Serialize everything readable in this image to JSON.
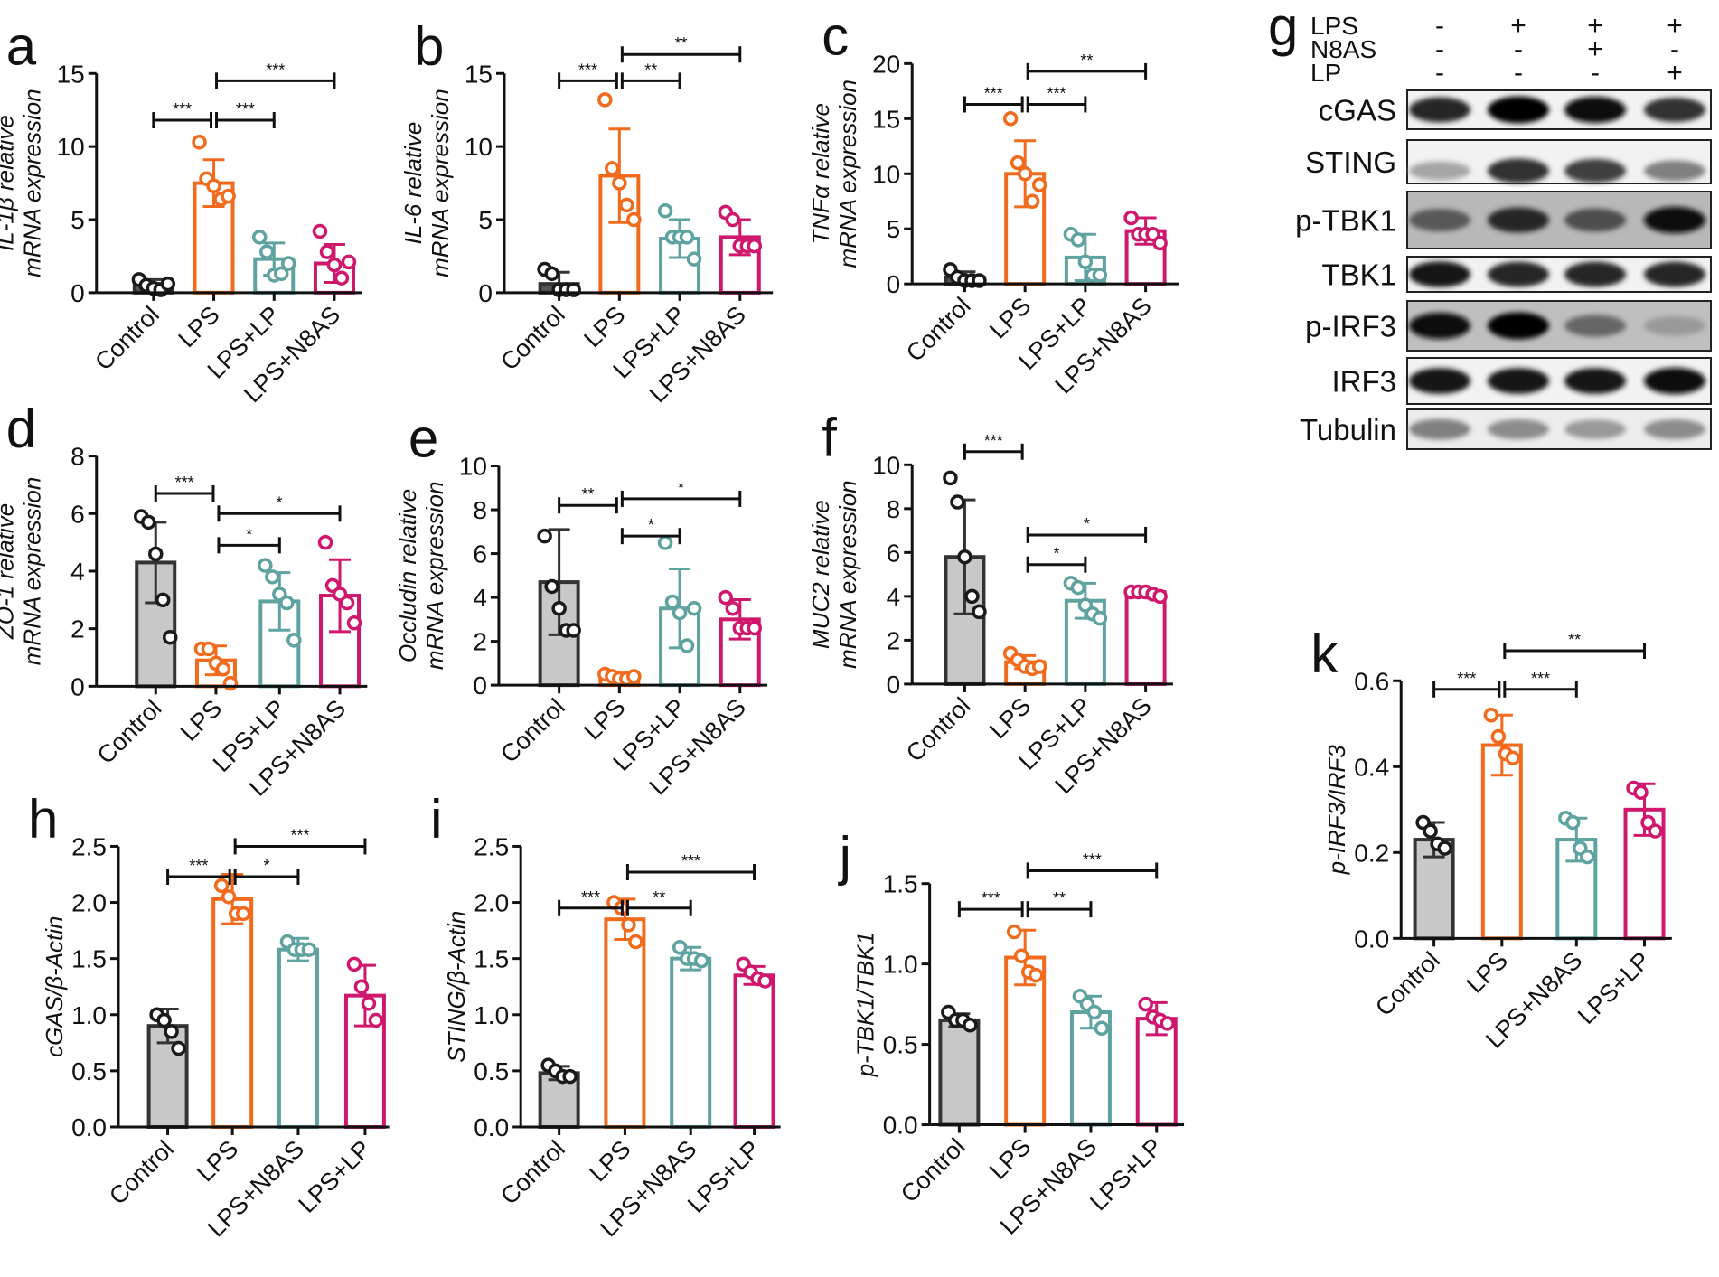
{
  "colors": {
    "control": "#1a1a1a",
    "control_fill": "#c8c8c8",
    "lps": "#f26b1d",
    "teal": "#5fa3a0",
    "magenta": "#d0176e"
  },
  "chart_data": [
    {
      "id": "a",
      "type": "bar",
      "panel_label": "a",
      "ylabel": [
        "IL-1β relative",
        "mRNA expression"
      ],
      "ylim": [
        0,
        15
      ],
      "yticks": [
        "0",
        "5",
        "10",
        "15"
      ],
      "ytick_values": [
        0,
        5,
        10,
        15
      ],
      "categories": [
        "Control",
        "LPS",
        "LPS+LP",
        "LPS+N8AS"
      ],
      "control_filled": false,
      "means": [
        0.6,
        7.5,
        2.3,
        2.0
      ],
      "sd": [
        0.3,
        1.6,
        1.1,
        1.3
      ],
      "points": [
        [
          0.9,
          0.5,
          0.3,
          0.2,
          0.6
        ],
        [
          10.3,
          7.8,
          7.3,
          6.4,
          6.6
        ],
        [
          3.8,
          2.8,
          1.2,
          1.3,
          2.0
        ],
        [
          4.2,
          2.8,
          1.9,
          1.0,
          2.1
        ]
      ],
      "significance": [
        {
          "from": 0,
          "to": 1,
          "label": "***",
          "y": 11.8
        },
        {
          "from": 1,
          "to": 2,
          "label": "***",
          "y": 11.8
        },
        {
          "from": 1,
          "to": 3,
          "label": "***",
          "y": 14.5
        }
      ]
    },
    {
      "id": "b",
      "type": "bar",
      "panel_label": "b",
      "ylabel": [
        "IL-6 relative",
        "mRNA expression"
      ],
      "ylim": [
        0,
        15
      ],
      "yticks": [
        "0",
        "5",
        "10",
        "15"
      ],
      "ytick_values": [
        0,
        5,
        10,
        15
      ],
      "categories": [
        "Control",
        "LPS",
        "LPS+LP",
        "LPS+N8AS"
      ],
      "control_filled": false,
      "means": [
        0.6,
        8.0,
        3.7,
        3.8
      ],
      "sd": [
        0.8,
        3.2,
        1.3,
        1.2
      ],
      "points": [
        [
          1.6,
          1.3,
          0.2,
          0.2,
          0.2
        ],
        [
          13.2,
          8.5,
          7.5,
          6.0,
          5.0
        ],
        [
          5.6,
          3.8,
          3.8,
          3.8,
          2.3
        ],
        [
          5.5,
          5.0,
          3.2,
          3.2,
          3.2
        ]
      ],
      "significance": [
        {
          "from": 0,
          "to": 1,
          "label": "***",
          "y": 14.5
        },
        {
          "from": 1,
          "to": 2,
          "label": "**",
          "y": 14.5
        },
        {
          "from": 1,
          "to": 3,
          "label": "**",
          "y": 16.3
        }
      ]
    },
    {
      "id": "c",
      "type": "bar",
      "panel_label": "c",
      "ylabel": [
        "TNFα relative",
        "mRNA expression"
      ],
      "ylim": [
        0,
        20
      ],
      "yticks": [
        "0",
        "5",
        "10",
        "15",
        "20"
      ],
      "ytick_values": [
        0,
        5,
        10,
        15,
        20
      ],
      "categories": [
        "Control",
        "LPS",
        "LPS+LP",
        "LPS+N8AS"
      ],
      "control_filled": false,
      "means": [
        0.6,
        10.0,
        2.4,
        4.8
      ],
      "sd": [
        0.5,
        3.0,
        2.1,
        1.2
      ],
      "points": [
        [
          1.3,
          0.6,
          0.3,
          0.3,
          0.3
        ],
        [
          15.0,
          11.0,
          10.0,
          7.5,
          9.0
        ],
        [
          4.5,
          4.0,
          2.0,
          0.8,
          0.8
        ],
        [
          6.0,
          4.5,
          4.5,
          4.5,
          3.7
        ]
      ],
      "significance": [
        {
          "from": 0,
          "to": 1,
          "label": "***",
          "y": 16.3
        },
        {
          "from": 1,
          "to": 2,
          "label": "***",
          "y": 16.3
        },
        {
          "from": 1,
          "to": 3,
          "label": "**",
          "y": 19.3
        }
      ]
    },
    {
      "id": "d",
      "type": "bar",
      "panel_label": "d",
      "ylabel": [
        "ZO-1 relative",
        "mRNA expression"
      ],
      "ylim": [
        0,
        8
      ],
      "yticks": [
        "0",
        "2",
        "4",
        "6",
        "8"
      ],
      "ytick_values": [
        0,
        2,
        4,
        6,
        8
      ],
      "categories": [
        "Control",
        "LPS",
        "LPS+LP",
        "LPS+N8AS"
      ],
      "control_filled": true,
      "means": [
        4.3,
        0.9,
        2.95,
        3.15
      ],
      "sd": [
        1.4,
        0.5,
        1.0,
        1.25
      ],
      "points": [
        [
          5.9,
          5.7,
          4.6,
          3.0,
          1.7
        ],
        [
          1.3,
          1.3,
          0.8,
          0.6,
          0.1
        ],
        [
          4.2,
          3.8,
          3.2,
          2.9,
          1.6
        ],
        [
          5.0,
          3.5,
          3.2,
          2.9,
          2.2
        ]
      ],
      "significance": [
        {
          "from": 0,
          "to": 1,
          "label": "***",
          "y": 6.7
        },
        {
          "from": 1,
          "to": 2,
          "label": "*",
          "y": 4.9
        },
        {
          "from": 1,
          "to": 3,
          "label": "*",
          "y": 6.0
        }
      ]
    },
    {
      "id": "e",
      "type": "bar",
      "panel_label": "e",
      "ylabel": [
        "Occludin relative",
        "mRNA expression"
      ],
      "ylim": [
        0,
        10
      ],
      "yticks": [
        "0",
        "2",
        "4",
        "6",
        "8",
        "10"
      ],
      "ytick_values": [
        0,
        2,
        4,
        6,
        8,
        10
      ],
      "categories": [
        "Control",
        "LPS",
        "LPS+LP",
        "LPS+N8AS"
      ],
      "control_filled": true,
      "means": [
        4.7,
        0.4,
        3.5,
        3.0
      ],
      "sd": [
        2.4,
        0.15,
        1.8,
        0.9
      ],
      "points": [
        [
          6.8,
          4.5,
          3.5,
          2.5,
          2.5
        ],
        [
          0.5,
          0.4,
          0.3,
          0.3,
          0.4
        ],
        [
          6.5,
          3.8,
          3.3,
          1.8,
          3.5
        ],
        [
          4.0,
          3.5,
          2.6,
          2.6,
          2.6
        ]
      ],
      "significance": [
        {
          "from": 0,
          "to": 1,
          "label": "**",
          "y": 8.2
        },
        {
          "from": 1,
          "to": 2,
          "label": "*",
          "y": 6.8
        },
        {
          "from": 1,
          "to": 3,
          "label": "*",
          "y": 8.5
        }
      ]
    },
    {
      "id": "f",
      "type": "bar",
      "panel_label": "f",
      "ylabel": [
        "MUC2 relative",
        "mRNA expression"
      ],
      "ylim": [
        0,
        10
      ],
      "yticks": [
        "0",
        "2",
        "4",
        "6",
        "8",
        "10"
      ],
      "ytick_values": [
        0,
        2,
        4,
        6,
        8,
        10
      ],
      "categories": [
        "Control",
        "LPS",
        "LPS+LP",
        "LPS+N8AS"
      ],
      "control_filled": true,
      "means": [
        5.8,
        1.0,
        3.8,
        4.2
      ],
      "sd": [
        2.6,
        0.3,
        0.8,
        0.15
      ],
      "points": [
        [
          9.4,
          8.3,
          5.8,
          4.0,
          3.3
        ],
        [
          1.4,
          1.1,
          0.8,
          0.7,
          0.8
        ],
        [
          4.6,
          4.4,
          3.6,
          3.2,
          3.0
        ],
        [
          4.2,
          4.2,
          4.2,
          4.1,
          4.0
        ]
      ],
      "significance": [
        {
          "from": 0,
          "to": 1,
          "label": "***",
          "y": 10.6
        },
        {
          "from": 1,
          "to": 2,
          "label": "*",
          "y": 5.45
        },
        {
          "from": 1,
          "to": 3,
          "label": "*",
          "y": 6.8
        }
      ]
    },
    {
      "id": "h",
      "type": "bar",
      "panel_label": "h",
      "ylabel": [
        "cGAS/β-Actin"
      ],
      "ylim": [
        0,
        2.5
      ],
      "yticks": [
        "0.0",
        "0.5",
        "1.0",
        "1.5",
        "2.0",
        "2.5"
      ],
      "ytick_values": [
        0,
        0.5,
        1,
        1.5,
        2,
        2.5
      ],
      "categories": [
        "Control",
        "LPS",
        "LPS+N8AS",
        "LPS+LP"
      ],
      "control_filled": true,
      "means": [
        0.9,
        2.03,
        1.58,
        1.17
      ],
      "sd": [
        0.15,
        0.22,
        0.1,
        0.27
      ],
      "points": [
        [
          1.0,
          0.95,
          0.85,
          0.7
        ],
        [
          2.15,
          2.05,
          1.9,
          1.9
        ],
        [
          1.65,
          1.58,
          1.58,
          1.58
        ],
        [
          1.45,
          1.25,
          1.1,
          0.95
        ]
      ],
      "significance": [
        {
          "from": 0,
          "to": 1,
          "label": "***",
          "y": 2.23
        },
        {
          "from": 1,
          "to": 2,
          "label": "*",
          "y": 2.23
        },
        {
          "from": 1,
          "to": 3,
          "label": "***",
          "y": 2.5
        }
      ]
    },
    {
      "id": "i",
      "type": "bar",
      "panel_label": "i",
      "ylabel": [
        "STING/β-Actin"
      ],
      "ylim": [
        0,
        2.5
      ],
      "yticks": [
        "0.0",
        "0.5",
        "1.0",
        "1.5",
        "2.0",
        "2.5"
      ],
      "ytick_values": [
        0,
        0.5,
        1,
        1.5,
        2,
        2.5
      ],
      "categories": [
        "Control",
        "LPS",
        "LPS+N8AS",
        "LPS+LP"
      ],
      "control_filled": true,
      "means": [
        0.48,
        1.85,
        1.5,
        1.35
      ],
      "sd": [
        0.06,
        0.18,
        0.1,
        0.08
      ],
      "points": [
        [
          0.55,
          0.5,
          0.45,
          0.45
        ],
        [
          2.0,
          1.95,
          1.8,
          1.65
        ],
        [
          1.6,
          1.5,
          1.5,
          1.48
        ],
        [
          1.45,
          1.38,
          1.32,
          1.3
        ]
      ],
      "significance": [
        {
          "from": 0,
          "to": 1,
          "label": "***",
          "y": 1.95
        },
        {
          "from": 1,
          "to": 2,
          "label": "**",
          "y": 1.95
        },
        {
          "from": 1,
          "to": 3,
          "label": "***",
          "y": 2.27
        }
      ]
    },
    {
      "id": "j",
      "type": "bar",
      "panel_label": "j",
      "ylabel": [
        "p-TBK1/TBK1"
      ],
      "ylim": [
        0,
        1.5
      ],
      "yticks": [
        "0.0",
        "0.5",
        "1.0",
        "1.5"
      ],
      "ytick_values": [
        0,
        0.5,
        1,
        1.5
      ],
      "categories": [
        "Control",
        "LPS",
        "LPS+N8AS",
        "LPS+LP"
      ],
      "control_filled": true,
      "means": [
        0.65,
        1.04,
        0.7,
        0.66
      ],
      "sd": [
        0.04,
        0.17,
        0.1,
        0.1
      ],
      "points": [
        [
          0.7,
          0.65,
          0.65,
          0.62
        ],
        [
          1.2,
          1.05,
          0.95,
          0.93
        ],
        [
          0.8,
          0.75,
          0.7,
          0.6
        ],
        [
          0.75,
          0.67,
          0.65,
          0.63
        ]
      ],
      "significance": [
        {
          "from": 0,
          "to": 1,
          "label": "***",
          "y": 1.34
        },
        {
          "from": 1,
          "to": 2,
          "label": "**",
          "y": 1.34
        },
        {
          "from": 1,
          "to": 3,
          "label": "***",
          "y": 1.58
        }
      ]
    },
    {
      "id": "k",
      "type": "bar",
      "panel_label": "k",
      "ylabel": [
        "p-IRF3/IRF3"
      ],
      "ylim": [
        0,
        0.6
      ],
      "yticks": [
        "0.0",
        "0.2",
        "0.4",
        "0.6"
      ],
      "ytick_values": [
        0,
        0.2,
        0.4,
        0.6
      ],
      "categories": [
        "Control",
        "LPS",
        "LPS+N8AS",
        "LPS+LP"
      ],
      "control_filled": true,
      "means": [
        0.23,
        0.45,
        0.23,
        0.3
      ],
      "sd": [
        0.04,
        0.07,
        0.05,
        0.06
      ],
      "points": [
        [
          0.27,
          0.25,
          0.22,
          0.21
        ],
        [
          0.52,
          0.47,
          0.43,
          0.42
        ],
        [
          0.28,
          0.27,
          0.21,
          0.19
        ],
        [
          0.35,
          0.34,
          0.27,
          0.25
        ]
      ],
      "significance": [
        {
          "from": 0,
          "to": 1,
          "label": "***",
          "y": 0.58
        },
        {
          "from": 1,
          "to": 2,
          "label": "***",
          "y": 0.58
        },
        {
          "from": 1,
          "to": 3,
          "label": "**",
          "y": 0.67
        }
      ]
    }
  ],
  "western_blot": {
    "panel_label": "g",
    "treatments": [
      {
        "name": "LPS",
        "lanes": [
          "-",
          "+",
          "+",
          "+"
        ]
      },
      {
        "name": "N8AS",
        "lanes": [
          "-",
          "-",
          "+",
          "-"
        ]
      },
      {
        "name": "LP",
        "lanes": [
          "-",
          "-",
          "-",
          "+"
        ]
      }
    ],
    "rows": [
      {
        "name": "cGAS",
        "intensity": [
          0.85,
          1.0,
          0.95,
          0.8
        ],
        "background": 0.05
      },
      {
        "name": "STING",
        "intensity": [
          0.35,
          0.8,
          0.75,
          0.5
        ],
        "background": 0.05
      },
      {
        "name": "p-TBK1",
        "intensity": [
          0.65,
          0.85,
          0.7,
          0.95
        ],
        "background": 0.28
      },
      {
        "name": "TBK1",
        "intensity": [
          0.9,
          0.85,
          0.85,
          0.85
        ],
        "background": 0.05
      },
      {
        "name": "p-IRF3",
        "intensity": [
          0.95,
          1.0,
          0.6,
          0.4
        ],
        "background": 0.25
      },
      {
        "name": "IRF3",
        "intensity": [
          0.9,
          0.9,
          0.9,
          0.95
        ],
        "background": 0.05
      },
      {
        "name": "Tubulin",
        "intensity": [
          0.5,
          0.45,
          0.4,
          0.45
        ],
        "background": 0.07
      }
    ]
  }
}
